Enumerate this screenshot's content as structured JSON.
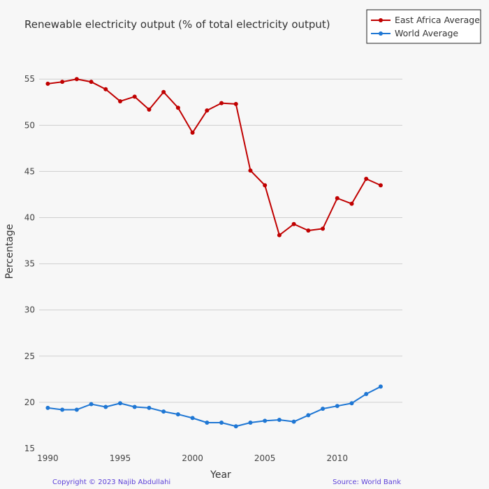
{
  "chart_data": {
    "type": "line",
    "title": "Renewable electricity output (% of total electricity output)",
    "xlabel": "Year",
    "ylabel": "Percentage",
    "x": [
      1990,
      1991,
      1992,
      1993,
      1994,
      1995,
      1996,
      1997,
      1998,
      1999,
      2000,
      2001,
      2002,
      2003,
      2004,
      2005,
      2006,
      2007,
      2008,
      2009,
      2010,
      2011,
      2012,
      2013
    ],
    "xlim": [
      1989.4,
      2014.5
    ],
    "ylim": [
      15,
      56
    ],
    "xticks": [
      1990,
      1995,
      2000,
      2005,
      2010
    ],
    "yticks": [
      15,
      20,
      25,
      30,
      35,
      40,
      45,
      50,
      55
    ],
    "grid": true,
    "legend_position": "top-right",
    "series": [
      {
        "name": "East Africa Average",
        "color": "#c00000",
        "values": [
          54.5,
          54.7,
          55.0,
          54.7,
          53.9,
          52.6,
          53.1,
          51.7,
          53.6,
          51.9,
          49.2,
          51.6,
          52.4,
          52.3,
          45.1,
          43.5,
          38.1,
          39.3,
          38.6,
          38.8,
          42.1,
          41.5,
          44.2,
          43.5
        ]
      },
      {
        "name": "World Average",
        "color": "#1f77d4",
        "values": [
          19.4,
          19.2,
          19.2,
          19.8,
          19.5,
          19.9,
          19.5,
          19.4,
          19.0,
          18.7,
          18.3,
          17.8,
          17.8,
          17.4,
          17.8,
          18.0,
          18.1,
          17.9,
          18.6,
          19.3,
          19.6,
          19.9,
          20.9,
          21.7
        ]
      }
    ]
  },
  "footer": {
    "copyright": "Copyright © 2023 Najib Abdullahi",
    "source": "Source: World Bank",
    "color": "#5b3fd8"
  }
}
